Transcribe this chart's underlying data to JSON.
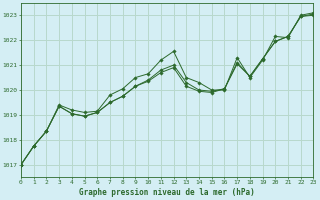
{
  "title": "Graphe pression niveau de la mer (hPa)",
  "background_color": "#d4eef4",
  "grid_color": "#b8d8cc",
  "line_color": "#2d6a2d",
  "text_color": "#2d6a2d",
  "x_min": 0,
  "x_max": 23,
  "y_min": 1016.5,
  "y_max": 1023.5,
  "yticks": [
    1017,
    1018,
    1019,
    1020,
    1021,
    1022,
    1023
  ],
  "xticks": [
    0,
    1,
    2,
    3,
    4,
    5,
    6,
    7,
    8,
    9,
    10,
    11,
    12,
    13,
    14,
    15,
    16,
    17,
    18,
    19,
    20,
    21,
    22,
    23
  ],
  "series": [
    [
      1017.0,
      1017.75,
      1018.35,
      1019.4,
      1019.2,
      1019.1,
      1019.15,
      1019.8,
      1020.05,
      1020.5,
      1020.65,
      1021.2,
      1021.55,
      1020.5,
      1020.3,
      1020.0,
      1020.0,
      1021.3,
      1020.5,
      1021.2,
      1022.15,
      1022.1,
      1023.0,
      1023.1
    ],
    [
      1017.0,
      1017.75,
      1018.35,
      1019.35,
      1019.05,
      1018.95,
      1019.1,
      1019.5,
      1019.75,
      1020.15,
      1020.4,
      1020.8,
      1021.0,
      1020.3,
      1020.0,
      1019.95,
      1020.05,
      1021.1,
      1020.55,
      1021.25,
      1021.95,
      1022.15,
      1022.95,
      1023.05
    ],
    [
      1017.0,
      1017.75,
      1018.35,
      1019.35,
      1019.05,
      1018.95,
      1019.1,
      1019.5,
      1019.75,
      1020.15,
      1020.35,
      1020.7,
      1020.9,
      1020.15,
      1019.95,
      1019.9,
      1020.05,
      1021.05,
      1020.55,
      1021.25,
      1021.95,
      1022.15,
      1022.95,
      1023.0
    ]
  ],
  "figwidth": 3.2,
  "figheight": 2.0,
  "dpi": 100
}
